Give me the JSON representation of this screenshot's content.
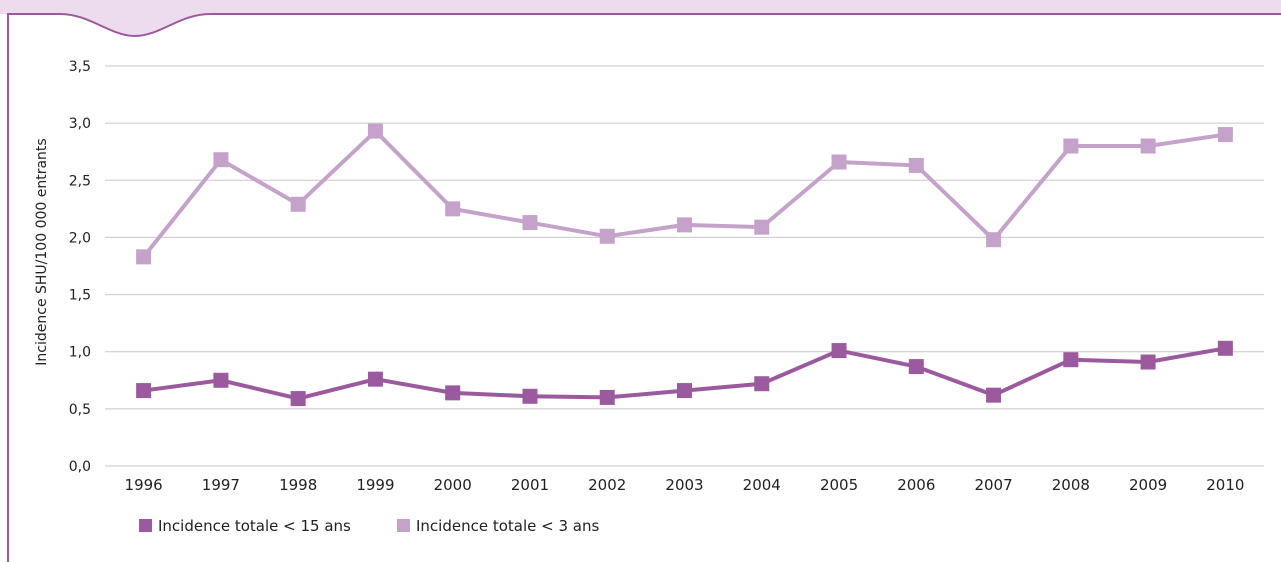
{
  "colors": {
    "series_under15": "#9b5a9d",
    "series_under3": "#c4a2c9",
    "frame": "#9b5a9d",
    "frame_fill": "#ecdcee",
    "grid": "#c8c8c8"
  },
  "chart_data": {
    "type": "line",
    "title": "",
    "xlabel": "",
    "ylabel": "Incidence SHU/100 000 entrants",
    "ylim": [
      0,
      3.5
    ],
    "yticks": [
      "0,0",
      "0,5",
      "1,0",
      "1,5",
      "2,0",
      "2,5",
      "3,0",
      "3,5"
    ],
    "grid": true,
    "legend_position": "bottom-left",
    "categories": [
      "1996",
      "1997",
      "1998",
      "1999",
      "2000",
      "2001",
      "2002",
      "2003",
      "2004",
      "2005",
      "2006",
      "2007",
      "2008",
      "2009",
      "2010"
    ],
    "series": [
      {
        "name": "Incidence totale < 15 ans",
        "marker": "square",
        "values": [
          0.66,
          0.75,
          0.59,
          0.76,
          0.64,
          0.61,
          0.6,
          0.66,
          0.72,
          1.01,
          0.87,
          0.62,
          0.93,
          0.91,
          1.03
        ]
      },
      {
        "name": "Incidence totale < 3 ans",
        "marker": "square",
        "values": [
          1.83,
          2.68,
          2.29,
          2.93,
          2.25,
          2.13,
          2.01,
          2.11,
          2.09,
          2.66,
          2.63,
          1.98,
          2.8,
          2.8,
          2.9
        ]
      }
    ]
  }
}
